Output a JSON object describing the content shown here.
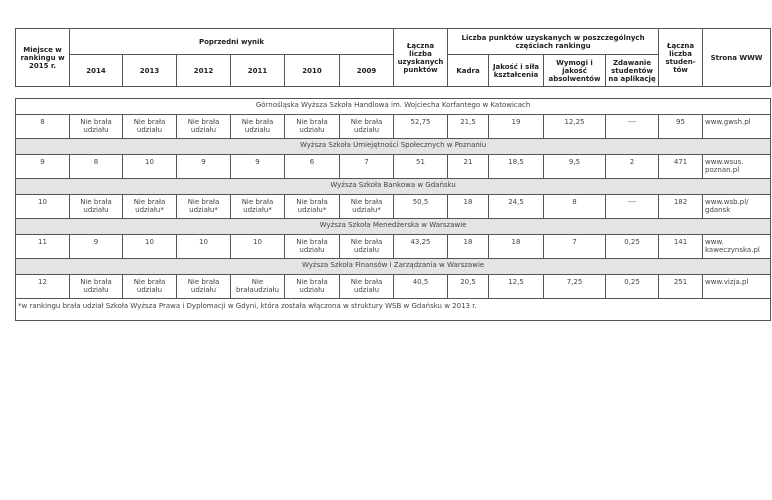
{
  "header": {
    "place": "Miejsce w rankingu w 2015 r.",
    "previous": "Poprzedni wynik",
    "years": [
      "2014",
      "2013",
      "2012",
      "2011",
      "2010",
      "2009"
    ],
    "total_points": "Łączna liczba uzyskanych punktów",
    "parts": "Liczba punktów uzyskanych w poszczególnych częściach rankingu",
    "part_cols": [
      "Kadra",
      "Jakość i siła kształcenia",
      "Wymogi i jakość absolwentów",
      "Zdawanie studentów na aplikację"
    ],
    "students": "Łączna liczba studen-tów",
    "www": "Strona WWW"
  },
  "schools": [
    {
      "name": "Górnośląska Wyższa Szkoła Handlowa im. Wojciecha Korfantego w Katowicach",
      "place": "8",
      "prev": [
        "Nie brała udziału",
        "Nie brała udziału",
        "Nie brała udziału",
        "Nie brała udziału",
        "Nie brała udziału",
        "Nie brała udziału"
      ],
      "total": "52,75",
      "kadra": "21,5",
      "jakosc": "19",
      "wymogi": "12,25",
      "zdawanie": "---",
      "students": "95",
      "www": "www.gwsh.pl"
    },
    {
      "name": "Wyższa Szkoła Umiejętności Społecznych w Poznaniu",
      "place": "9",
      "prev": [
        "8",
        "10",
        "9",
        "9",
        "6",
        "7"
      ],
      "total": "51",
      "kadra": "21",
      "jakosc": "18,5",
      "wymogi": "9,5",
      "zdawanie": "2",
      "students": "471",
      "www": "www.wsus. poznan.pl"
    },
    {
      "name": "Wyższa Szkoła Bankowa w Gdańsku",
      "place": "10",
      "prev": [
        "Nie brała udziału",
        "Nie brała udziału*",
        "Nie brała udziału*",
        "Nie brała udziału*",
        "Nie brała udziału*",
        "Nie brała udziału*"
      ],
      "total": "50,5",
      "kadra": "18",
      "jakosc": "24,5",
      "wymogi": "8",
      "zdawanie": "---",
      "students": "182",
      "www": "www.wsb.pl/ gdansk"
    },
    {
      "name": "Wyższa Szkoła Menedżerska w Warszawie",
      "place": "11",
      "prev": [
        "9",
        "10",
        "10",
        "10",
        "Nie brała udziału",
        "Nie brała udziału"
      ],
      "total": "43,25",
      "kadra": "18",
      "jakosc": "18",
      "wymogi": "7",
      "zdawanie": "0,25",
      "students": "141",
      "www": "www. kaweczynska.pl"
    },
    {
      "name": "Wyższa Szkoła Finansów i Zarządzania w Warszawie",
      "place": "12",
      "prev": [
        "Nie brała udziału",
        "Nie brała udziału",
        "Nie brała udziału",
        "Nie brałaudziału",
        "Nie brała udziału",
        "Nie brała udziału"
      ],
      "total": "40,5",
      "kadra": "20,5",
      "jakosc": "12,5",
      "wymogi": "7,25",
      "zdawanie": "0,25",
      "students": "251",
      "www": "www.vizja.pl"
    }
  ],
  "footnote": "*w rankingu brała udział Szkoła Wyższa Prawa i Dyplomacji w Gdyni, która została włączona w struktury WSB w Gdańsku w 2013 r."
}
